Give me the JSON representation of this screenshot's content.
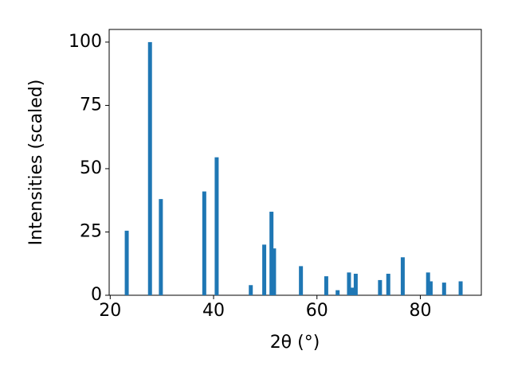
{
  "chart_data": {
    "type": "bar",
    "xlabel": "2θ (°)",
    "ylabel": "Intensities (scaled)",
    "x": [
      23.2,
      27.7,
      29.8,
      38.2,
      40.6,
      47.2,
      49.8,
      51.2,
      51.7,
      56.9,
      61.8,
      64.0,
      66.2,
      66.9,
      67.5,
      72.2,
      73.8,
      76.6,
      81.5,
      82.0,
      84.6,
      87.8
    ],
    "values": [
      25.5,
      100,
      38,
      41,
      54.5,
      4,
      20,
      33,
      18.5,
      11.5,
      7.5,
      2,
      9,
      3,
      8.5,
      6,
      8.5,
      15,
      9,
      5.5,
      5,
      5.5
    ],
    "color": "#1f77b4",
    "xlim": [
      19.8,
      91.8
    ],
    "xticks": [
      20,
      40,
      60,
      80
    ],
    "ylim": [
      0,
      105
    ],
    "yticks": [
      0,
      25,
      50,
      75,
      100
    ],
    "grid": false
  }
}
